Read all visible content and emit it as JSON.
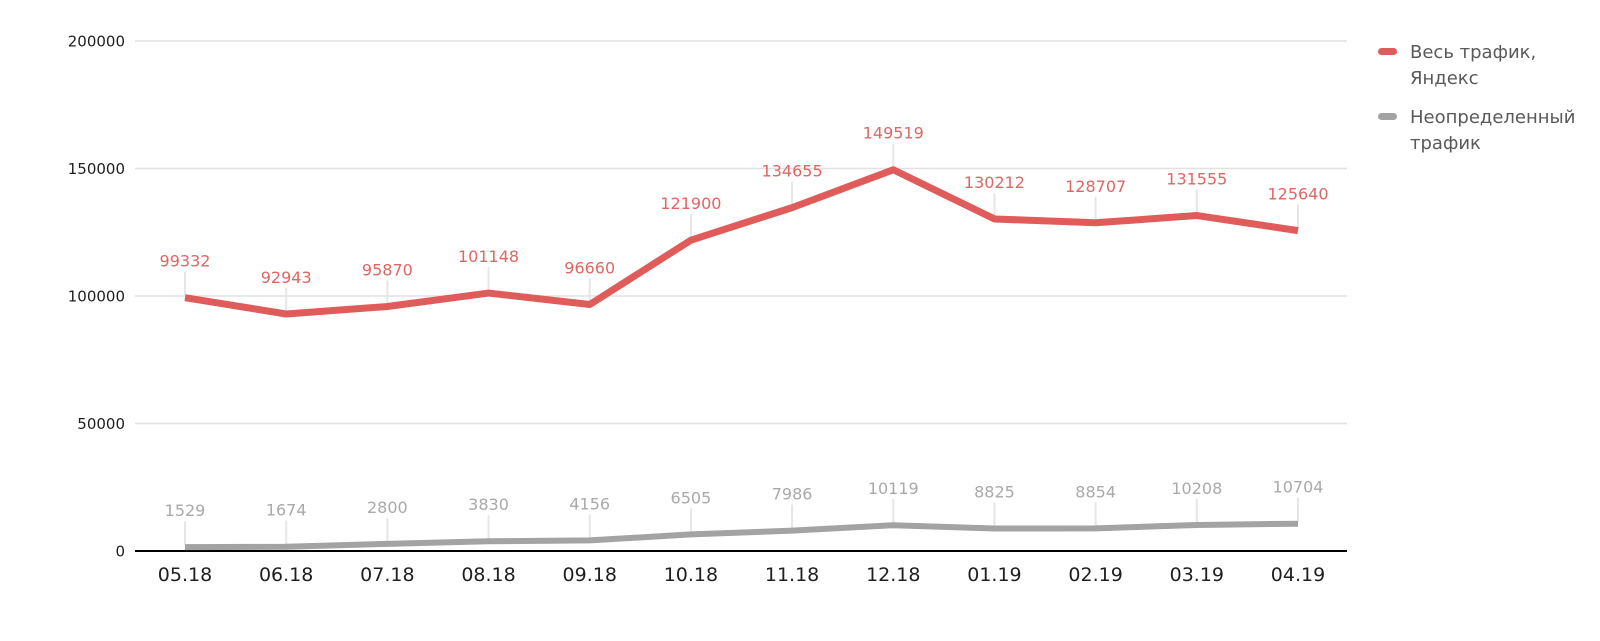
{
  "chart_data": {
    "type": "line",
    "title": "",
    "xlabel": "",
    "ylabel": "",
    "categories": [
      "05.18",
      "06.18",
      "07.18",
      "08.18",
      "09.18",
      "10.18",
      "11.18",
      "12.18",
      "01.19",
      "02.19",
      "03.19",
      "04.19"
    ],
    "series": [
      {
        "name": "Весь трафик, Яндекс",
        "color": "#e05c5a",
        "label_color": "#e06664",
        "stroke_width": 7,
        "values": [
          99332,
          92943,
          95870,
          101148,
          96660,
          121900,
          134655,
          149519,
          130212,
          128707,
          131555,
          125640
        ]
      },
      {
        "name": "Неопределенный трафик",
        "color": "#a3a3a3",
        "label_color": "#a9a9a9",
        "stroke_width": 6,
        "values": [
          1529,
          1674,
          2800,
          3830,
          4156,
          6505,
          7986,
          10119,
          8825,
          8854,
          10208,
          10704
        ]
      }
    ],
    "ylim": [
      0,
      200000
    ],
    "yticks": [
      0,
      50000,
      100000,
      150000,
      200000
    ],
    "grid": true,
    "data_labels": true,
    "legend_position": "right"
  },
  "colors": {
    "background": "#ffffff",
    "grid_line": "#e2e2e2",
    "axis_line": "#000000",
    "axis_text": "#1f1f1f",
    "leader_line": "#e6e6e6",
    "legend_text": "#595959"
  }
}
